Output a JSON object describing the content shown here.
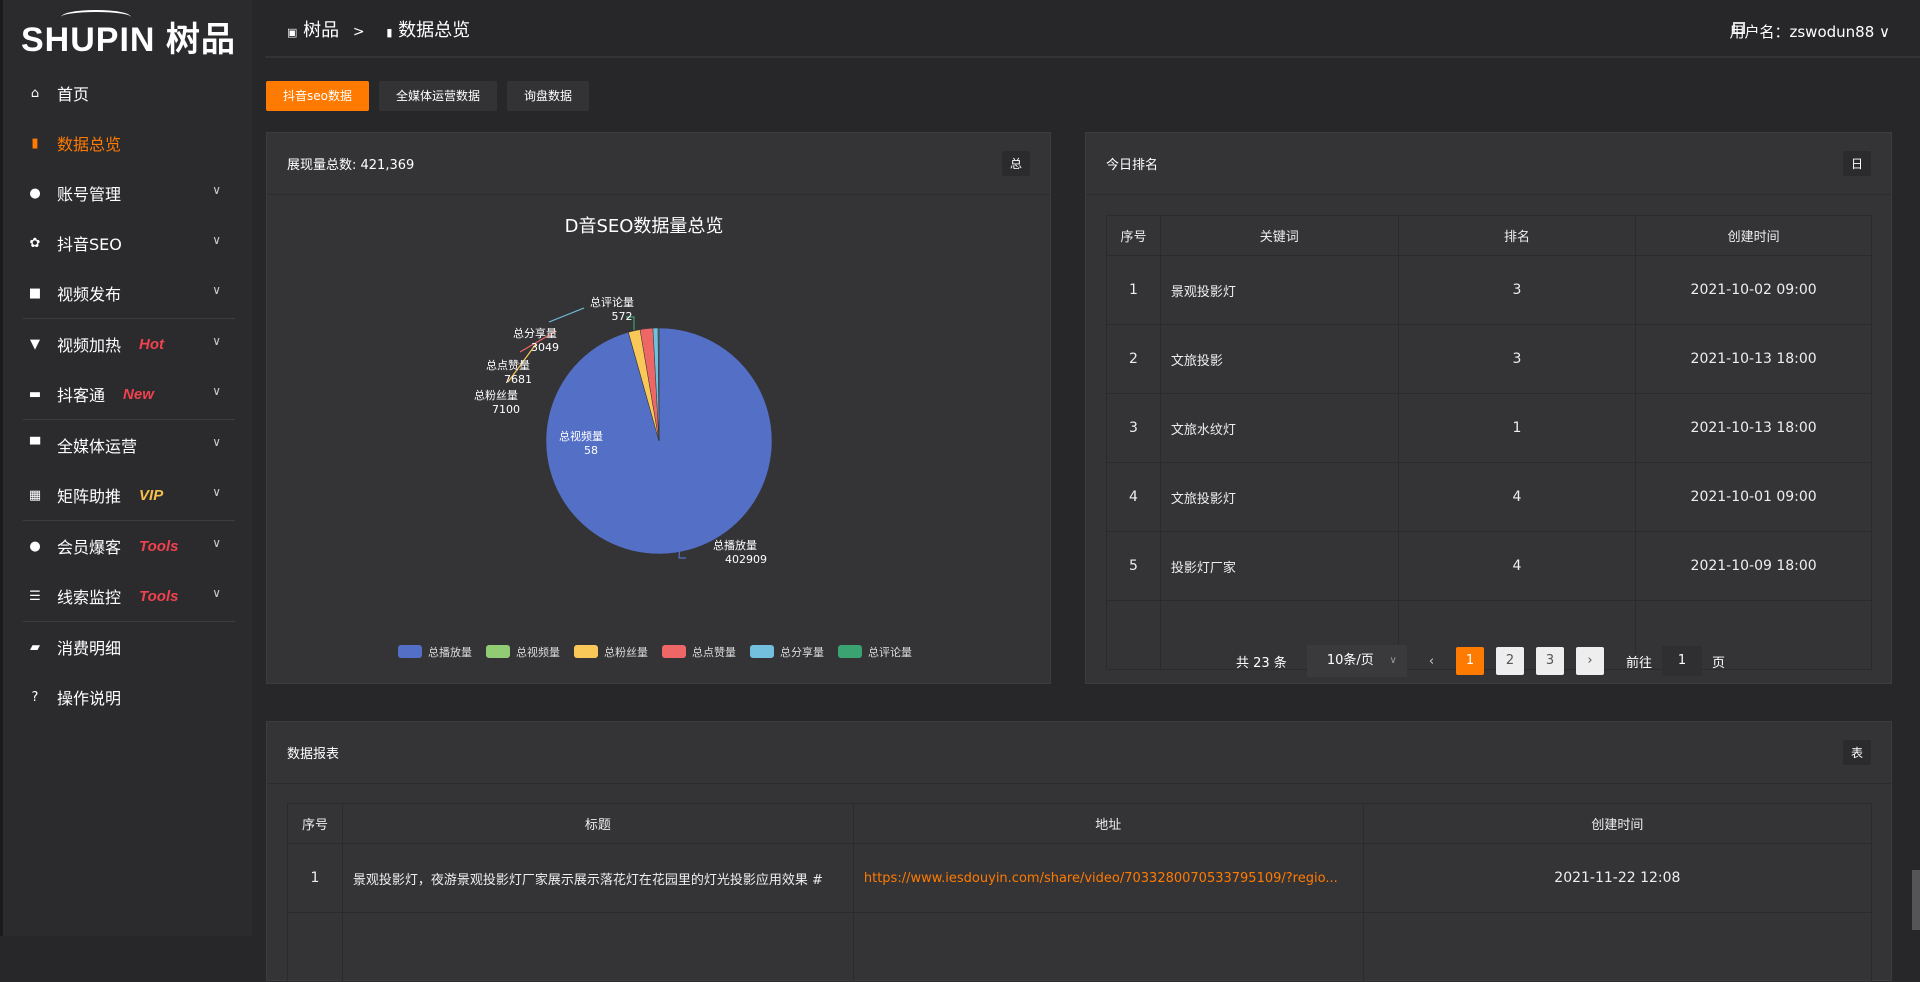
{
  "logo": {
    "text": "SHUPIN 树品"
  },
  "breadcrumb": {
    "root": "树品",
    "sep": ">",
    "current": "数据总览"
  },
  "header": {
    "user_label": "用户名：zswodun88"
  },
  "sidebar": {
    "items": [
      {
        "label": "首页",
        "icon": "home-icon",
        "glyph": "⌂"
      },
      {
        "label": "数据总览",
        "icon": "bar-chart-icon",
        "glyph": "▮",
        "active": true
      },
      {
        "label": "账号管理",
        "icon": "user-icon",
        "glyph": "●",
        "chev": true
      },
      {
        "label": "抖音SEO",
        "icon": "gear-icon",
        "glyph": "✿",
        "chev": true
      },
      {
        "label": "视频发布",
        "icon": "camera-icon",
        "glyph": "■",
        "chev": true,
        "sep_after": true
      },
      {
        "label": "视频加热",
        "icon": "flag-icon",
        "glyph": "▼",
        "chev": true,
        "tag": "Hot",
        "tag_color": "#f0424e"
      },
      {
        "label": "抖客通",
        "icon": "chat-icon",
        "glyph": "▬",
        "chev": true,
        "tag": "New",
        "tag_color": "#f0424e",
        "sep_after": true
      },
      {
        "label": "全媒体运营",
        "icon": "monitor-icon",
        "glyph": "▀",
        "chev": true
      },
      {
        "label": "矩阵助推",
        "icon": "grid-icon",
        "glyph": "▦",
        "chev": true,
        "tag": "VIP",
        "tag_color": "#f5c04a",
        "sep_after": true
      },
      {
        "label": "会员爆客",
        "icon": "member-icon",
        "glyph": "●",
        "chev": true,
        "tag": "Tools",
        "tag_color": "#f0424e"
      },
      {
        "label": "线索监控",
        "icon": "sliders-icon",
        "glyph": "☰",
        "chev": true,
        "tag": "Tools",
        "tag_color": "#f0424e",
        "sep_after": true
      },
      {
        "label": "消费明细",
        "icon": "wallet-icon",
        "glyph": "▰"
      },
      {
        "label": "操作说明",
        "icon": "help-icon",
        "glyph": "?"
      }
    ]
  },
  "tabs": [
    "抖音seo数据",
    "全媒体运营数据",
    "询盘数据"
  ],
  "pie_card": {
    "title": "展现量总数: 421,369",
    "badge": "总"
  },
  "rank_card": {
    "title": "今日排名",
    "badge": "日",
    "columns": [
      "序号",
      "关键词",
      "排名",
      "创建时间"
    ],
    "rows": [
      [
        "1",
        "景观投影灯",
        "3",
        "2021-10-02 09:00"
      ],
      [
        "2",
        "文旅投影",
        "3",
        "2021-10-13 18:00"
      ],
      [
        "3",
        "文旅水纹灯",
        "1",
        "2021-10-13 18:00"
      ],
      [
        "4",
        "文旅投影灯",
        "4",
        "2021-10-01 09:00"
      ],
      [
        "5",
        "投影灯厂家",
        "4",
        "2021-10-09 18:00"
      ]
    ],
    "pager": {
      "total": "共 23 条",
      "size": "10条/页",
      "pages": [
        "1",
        "2",
        "3"
      ],
      "current": 1,
      "goto_label": "前往",
      "goto_value": "1",
      "page_unit": "页"
    }
  },
  "report_card": {
    "title": "数据报表",
    "badge": "表",
    "columns": [
      "序号",
      "标题",
      "地址",
      "创建时间"
    ],
    "rows": [
      [
        "1",
        "景观投影灯，夜游景观投影灯厂家展示展示落花灯在花园里的灯光投影应用效果 #",
        "https://www.iesdouyin.com/share/video/7033280070533795109/?regio...",
        "2021-11-22 12:08"
      ]
    ]
  },
  "chart_data": {
    "type": "pie",
    "title": "D音SEO数据量总览",
    "legend": "bottom",
    "slices": [
      {
        "name": "总播放量",
        "value": 402909,
        "color": "#5470c6"
      },
      {
        "name": "总视频量",
        "value": 58,
        "color": "#91cc75"
      },
      {
        "name": "总粉丝量",
        "value": 7100,
        "color": "#fac858"
      },
      {
        "name": "总点赞量",
        "value": 7681,
        "color": "#ee6666"
      },
      {
        "name": "总分享量",
        "value": 3049,
        "color": "#73c0de"
      },
      {
        "name": "总评论量",
        "value": 572,
        "color": "#3ba272"
      }
    ]
  }
}
